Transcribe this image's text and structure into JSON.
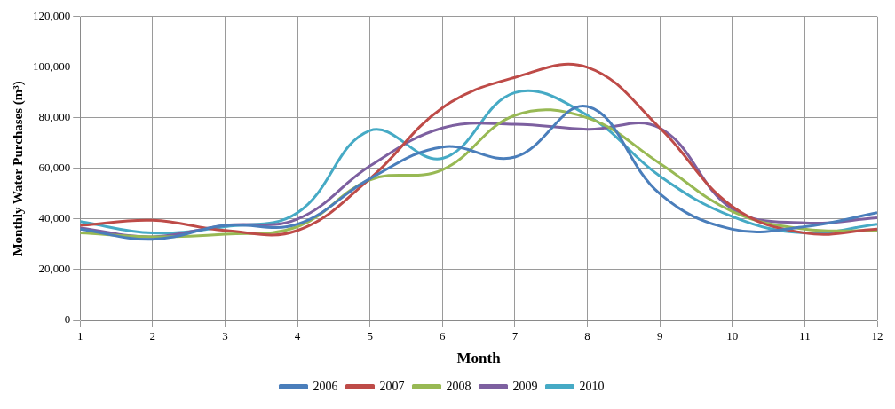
{
  "chart_data": {
    "type": "line",
    "xlabel": "Month",
    "ylabel": "Monthly Water Purchases (m³)",
    "x": [
      1,
      2,
      3,
      4,
      5,
      6,
      7,
      8,
      9,
      10,
      11,
      12
    ],
    "xlim": [
      1,
      12
    ],
    "xticks": [
      1,
      2,
      3,
      4,
      5,
      6,
      7,
      8,
      9,
      10,
      11,
      12
    ],
    "ylim": [
      0,
      120000
    ],
    "yticks": [
      0,
      {
        "value": 20000,
        "label": "20,000"
      },
      {
        "value": 40000,
        "label": "40,000"
      },
      {
        "value": 60000,
        "label": "60,000"
      },
      {
        "value": 80000,
        "label": "80,000"
      },
      {
        "value": 100000,
        "label": "100,000"
      },
      {
        "value": 120000,
        "label": "120,000"
      }
    ],
    "grid": true,
    "legend": "bottom",
    "marker": "none",
    "line_style": "solid",
    "series": [
      {
        "name": "2006",
        "color": "#4a7ebb",
        "values": [
          36000,
          32000,
          37500,
          38000,
          56000,
          68500,
          64500,
          84500,
          50000,
          36000,
          37000,
          42500
        ]
      },
      {
        "name": "2007",
        "color": "#be4b48",
        "values": [
          37500,
          39500,
          35500,
          35500,
          56000,
          84000,
          96000,
          100000,
          76000,
          45000,
          34500,
          36000
        ]
      },
      {
        "name": "2008",
        "color": "#98b954",
        "values": [
          34500,
          33000,
          34000,
          37000,
          55500,
          59500,
          81000,
          80000,
          62000,
          43000,
          36000,
          35500
        ]
      },
      {
        "name": "2009",
        "color": "#7d60a0",
        "values": [
          36500,
          33000,
          37500,
          40000,
          61000,
          76000,
          77500,
          75500,
          76000,
          44000,
          38500,
          40500
        ]
      },
      {
        "name": "2010",
        "color": "#46aac5",
        "values": [
          39000,
          34500,
          37000,
          42500,
          75000,
          64000,
          90000,
          81000,
          57000,
          41000,
          34500,
          38000
        ]
      }
    ]
  }
}
